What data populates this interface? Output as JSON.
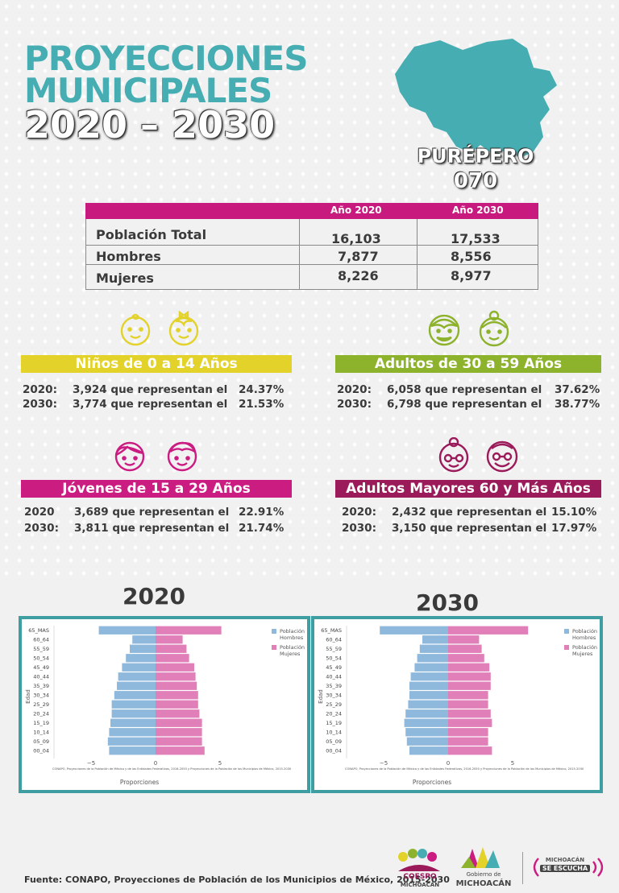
{
  "header": {
    "title_line1": "PROYECCIONES",
    "title_line2": "MUNICIPALES",
    "years": "2020 – 2030",
    "municipality": "PURÉPERO",
    "municipality_code": "070"
  },
  "population_table": {
    "columns": [
      "Año 2020",
      "Año 2030"
    ],
    "rows": [
      {
        "label": "Población Total",
        "y2020": "16,103",
        "y2030": "17,533"
      },
      {
        "label": "Hombres",
        "y2020": "7,877",
        "y2030": "8,556"
      },
      {
        "label": "Mujeres",
        "y2020": "8,226",
        "y2030": "8,977"
      }
    ]
  },
  "groups": {
    "ninos": {
      "title": "Niños de 0 a 14 Años",
      "color": "#e2d22a",
      "lines": [
        {
          "year": "2020:",
          "text": "3,924 que representan el",
          "pct": "24.37%"
        },
        {
          "year": "2030:",
          "text": "3,774 que representan el",
          "pct": "21.53%"
        }
      ]
    },
    "adultos": {
      "title": "Adultos de 30 a 59 Años",
      "color": "#8db22c",
      "lines": [
        {
          "year": "2020:",
          "text": "6,058 que representan el",
          "pct": "37.62%"
        },
        {
          "year": "2030:",
          "text": "6,798 que representan el",
          "pct": "38.77%"
        }
      ]
    },
    "jovenes": {
      "title": "Jóvenes de 15 a 29 Años",
      "color": "#cb1c82",
      "lines": [
        {
          "year": "2020",
          "text": "3,689 que representan el",
          "pct": "22.91%"
        },
        {
          "year": "2030:",
          "text": "3,811 que representan el",
          "pct": "21.74%"
        }
      ]
    },
    "mayores": {
      "title": "Adultos Mayores  60 y Más Años",
      "color": "#9b1b5a",
      "lines": [
        {
          "year": "2020:",
          "text": "2,432 que representan el",
          "pct": "15.10%"
        },
        {
          "year": "2030:",
          "text": "3,150 que representan el",
          "pct": "17.97%"
        }
      ]
    }
  },
  "chart_data": [
    {
      "type": "bar",
      "title": "2020",
      "categories": [
        "65_MAS",
        "60_64",
        "55_59",
        "50_54",
        "45_49",
        "40_44",
        "35_39",
        "30_34",
        "25_29",
        "20_24",
        "15_19",
        "10_14",
        "05_09",
        "00_04"
      ],
      "series": [
        {
          "name": "Población Hombres",
          "color": "#8fb9dc",
          "values": [
            -4.4,
            -1.8,
            -2.0,
            -2.3,
            -2.6,
            -2.9,
            -3.0,
            -3.2,
            -3.4,
            -3.4,
            -3.5,
            -3.6,
            -3.7,
            -3.6
          ]
        },
        {
          "name": "Población Mujeres",
          "color": "#e07fb8",
          "values": [
            5.1,
            2.1,
            2.4,
            2.6,
            3.0,
            3.1,
            3.2,
            3.3,
            3.3,
            3.4,
            3.6,
            3.6,
            3.6,
            3.8
          ]
        }
      ],
      "xlabel": "Proporciones",
      "ylabel": "Edad",
      "xticks": [
        "−5",
        "0",
        "5"
      ],
      "source_note": "CONAPO, Proyecciones de la Población de México y de las Entidades Federativas, 2016-2050 y Proyecciones de la Población de los Municipios de México, 2015-2030"
    },
    {
      "type": "bar",
      "title": "2030",
      "categories": [
        "65_MAS",
        "60_64",
        "55_59",
        "50_54",
        "45_49",
        "40_44",
        "35_39",
        "30_34",
        "25_29",
        "20_24",
        "15_19",
        "10_14",
        "05_09",
        "00_04"
      ],
      "series": [
        {
          "name": "Población Hombres",
          "color": "#8fb9dc",
          "values": [
            -5.3,
            -2.0,
            -2.2,
            -2.4,
            -2.6,
            -2.9,
            -3.0,
            -3.0,
            -3.1,
            -3.3,
            -3.4,
            -3.3,
            -3.2,
            -3.0
          ]
        },
        {
          "name": "Población Mujeres",
          "color": "#e07fb8",
          "values": [
            6.2,
            2.4,
            2.6,
            2.8,
            3.2,
            3.3,
            3.3,
            3.1,
            3.1,
            3.3,
            3.4,
            3.1,
            3.1,
            3.4
          ]
        }
      ],
      "xlabel": "Proporciones",
      "ylabel": "Edad",
      "xticks": [
        "−5",
        "0",
        "5"
      ],
      "source_note": "CONAPO, Proyecciones de la Población de México y de las Entidades Federativas, 2016-2050 y Proyecciones de la Población de los Municipios de México, 2015-2030"
    }
  ],
  "footer": {
    "source": "Fuente: CONAPO, Proyecciones de Población de los Municipios de México, 2015-2030",
    "logo1_line1": "COESPO",
    "logo1_line2": "MICHOACÁN",
    "logo2_line1": "Gobierno de",
    "logo2_line2": "MICHOACÁN",
    "logo3_line1": "MICHOACÁN",
    "logo3_line2": "SE ESCUCHA"
  },
  "colors": {
    "teal": "#46aeb2",
    "magenta": "#c8197f",
    "chart_border": "#3f9ea1"
  }
}
